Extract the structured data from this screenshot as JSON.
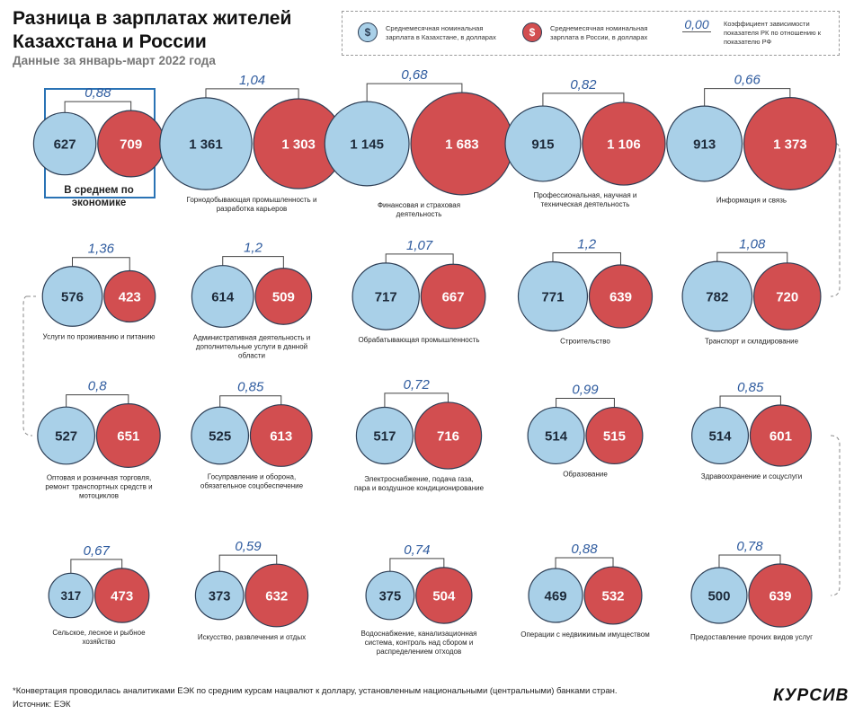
{
  "title": "Разница в зарплатах жителей Казахстана и России",
  "subtitle": "Данные за январь-март 2022 года",
  "legend": {
    "kz_symbol": "$",
    "ru_symbol": "$",
    "kz_text": "Среднемесячная номинальная зарплата в Казахстане, в долларах",
    "ru_text": "Среднемесячная номинальная зарплата в России, в долларах",
    "ratio_sample": "0,00",
    "ratio_text": "Коэффициент зависимости показателя РК по отношению к показателю РФ"
  },
  "colors": {
    "kz": "#a9d0e8",
    "ru": "#d24e50",
    "stroke": "#2d3e55",
    "ratio": "#2d5a9e",
    "box": "#2a73b5"
  },
  "items": [
    {
      "ratio": "0,88",
      "kz": "627",
      "ru": "709",
      "kz_value": 627,
      "ru_value": 709,
      "label": "В среднем по экономике",
      "highlight": true
    },
    {
      "ratio": "1,04",
      "kz": "1 361",
      "ru": "1 303",
      "kz_value": 1361,
      "ru_value": 1303,
      "label": "Горнодобывающая промышленность и разработка карьеров"
    },
    {
      "ratio": "0,68",
      "kz": "1 145",
      "ru": "1 683",
      "kz_value": 1145,
      "ru_value": 1683,
      "label": "Финансовая и страховая деятельность"
    },
    {
      "ratio": "0,82",
      "kz": "915",
      "ru": "1 106",
      "kz_value": 915,
      "ru_value": 1106,
      "label": "Профессиональная, научная и техническая деятельность"
    },
    {
      "ratio": "0,66",
      "kz": "913",
      "ru": "1 373",
      "kz_value": 913,
      "ru_value": 1373,
      "label": "Информация и связь"
    },
    {
      "ratio": "1,36",
      "kz": "576",
      "ru": "423",
      "kz_value": 576,
      "ru_value": 423,
      "label": "Услуги по проживанию и питанию"
    },
    {
      "ratio": "1,2",
      "kz": "614",
      "ru": "509",
      "kz_value": 614,
      "ru_value": 509,
      "label": "Административная деятельность и дополнительные услуги в данной области"
    },
    {
      "ratio": "1,07",
      "kz": "717",
      "ru": "667",
      "kz_value": 717,
      "ru_value": 667,
      "label": "Обрабатывающая промышленность"
    },
    {
      "ratio": "1,2",
      "kz": "771",
      "ru": "639",
      "kz_value": 771,
      "ru_value": 639,
      "label": "Строительство"
    },
    {
      "ratio": "1,08",
      "kz": "782",
      "ru": "720",
      "kz_value": 782,
      "ru_value": 720,
      "label": "Транспорт и складирование"
    },
    {
      "ratio": "0,8",
      "kz": "527",
      "ru": "651",
      "kz_value": 527,
      "ru_value": 651,
      "label": "Оптовая и розничная торговля, ремонт транспортных средств и мотоциклов"
    },
    {
      "ratio": "0,85",
      "kz": "525",
      "ru": "613",
      "kz_value": 525,
      "ru_value": 613,
      "label": "Госуправление и оборона, обязательное соцобеспечение"
    },
    {
      "ratio": "0,72",
      "kz": "517",
      "ru": "716",
      "kz_value": 517,
      "ru_value": 716,
      "label": "Электроснабжение, подача газа, пара и воздушное кондиционирование"
    },
    {
      "ratio": "0,99",
      "kz": "514",
      "ru": "515",
      "kz_value": 514,
      "ru_value": 515,
      "label": "Образование"
    },
    {
      "ratio": "0,85",
      "kz": "514",
      "ru": "601",
      "kz_value": 514,
      "ru_value": 601,
      "label": "Здравоохранение и соцуслуги"
    },
    {
      "ratio": "0,67",
      "kz": "317",
      "ru": "473",
      "kz_value": 317,
      "ru_value": 473,
      "label": "Сельское, лесное и рыбное хозяйство"
    },
    {
      "ratio": "0,59",
      "kz": "373",
      "ru": "632",
      "kz_value": 373,
      "ru_value": 632,
      "label": "Искусство, развлечения и отдых"
    },
    {
      "ratio": "0,74",
      "kz": "375",
      "ru": "504",
      "kz_value": 375,
      "ru_value": 504,
      "label": "Водоснабжение, канализационная система, контроль над сбором и распределением отходов"
    },
    {
      "ratio": "0,88",
      "kz": "469",
      "ru": "532",
      "kz_value": 469,
      "ru_value": 532,
      "label": "Операции с недвижимым имуществом"
    },
    {
      "ratio": "0,78",
      "kz": "500",
      "ru": "639",
      "kz_value": 500,
      "ru_value": 639,
      "label": "Предоставление прочих видов услуг"
    }
  ],
  "footnote": "*Конвертация проводилась аналитиками ЕЭК по средним курсам нацвалют к доллару, установленным национальными (центральными) банками стран.",
  "source": "Источник: ЕЭК",
  "logo": "КУРСИВ"
}
